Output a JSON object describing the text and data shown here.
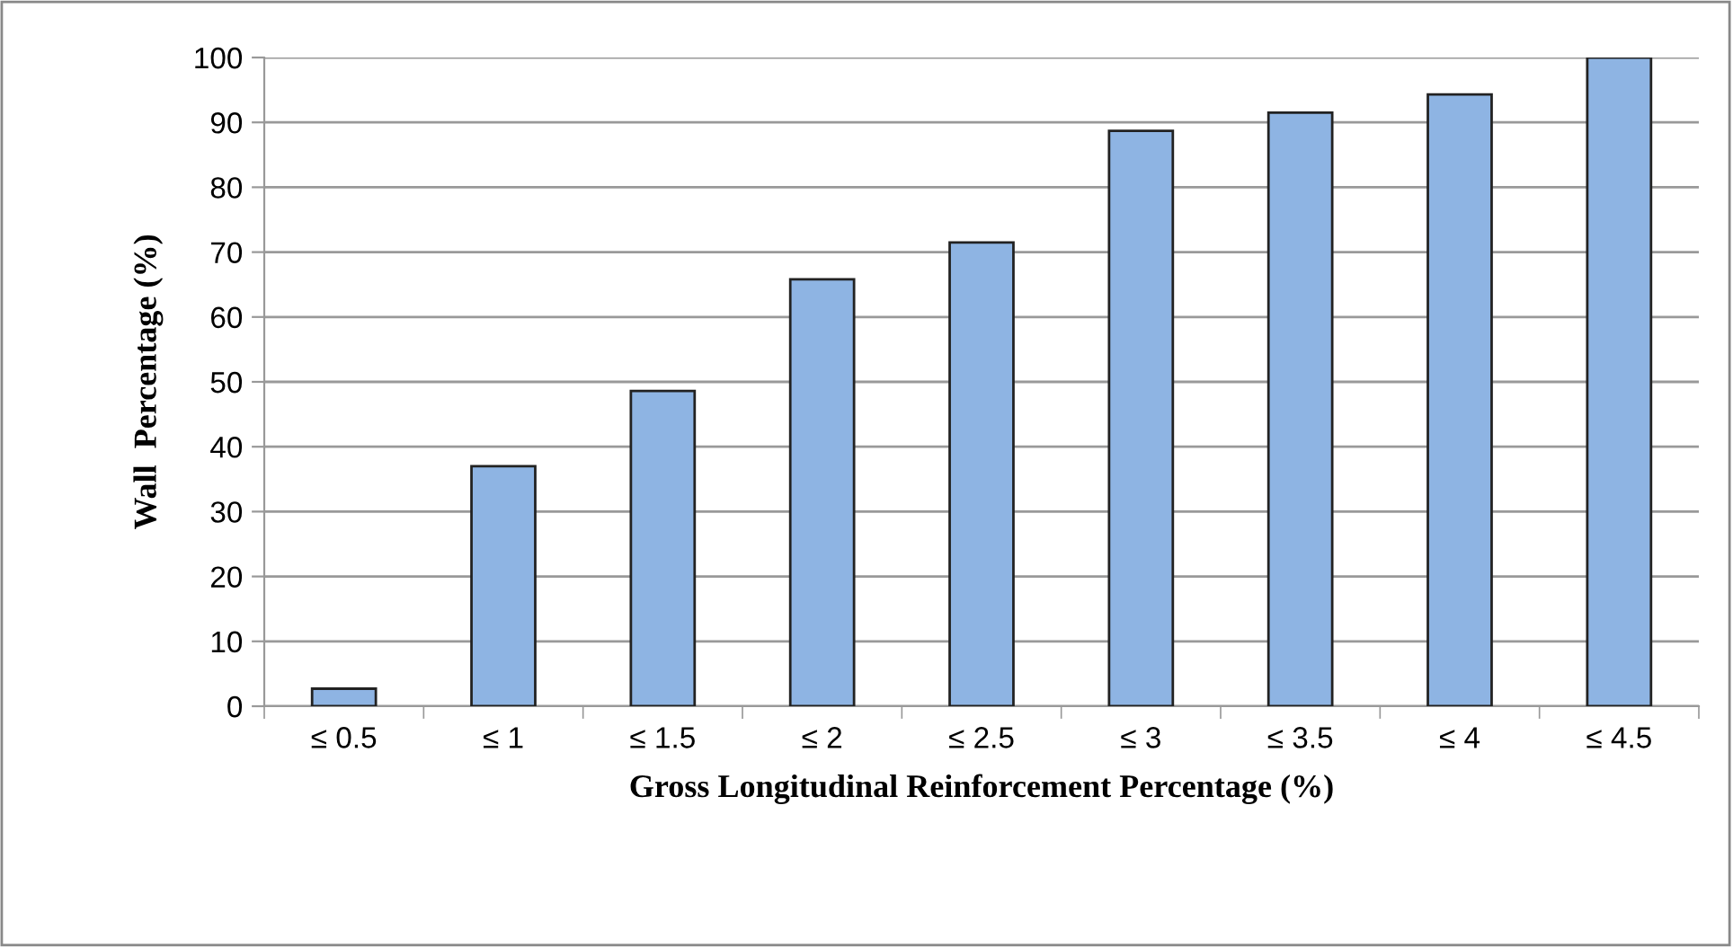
{
  "chart_data": {
    "type": "bar",
    "xlabel": "Gross Longitudinal Reinforcement Percentage (%)",
    "ylabel": "Wall  Percentage (%)",
    "categories": [
      "≤ 0.5",
      "≤ 1",
      "≤ 1.5",
      "≤ 2",
      "≤ 2.5",
      "≤ 3",
      "≤ 3.5",
      "≤ 4",
      "≤ 4.5"
    ],
    "values": [
      2.7,
      37.0,
      48.6,
      65.8,
      71.5,
      88.7,
      91.5,
      94.3,
      100
    ],
    "color": "#8eb4e3",
    "ylim": [
      0,
      100
    ],
    "yticks": [
      0,
      10,
      20,
      30,
      40,
      50,
      60,
      70,
      80,
      90,
      100
    ],
    "grid": "y"
  }
}
